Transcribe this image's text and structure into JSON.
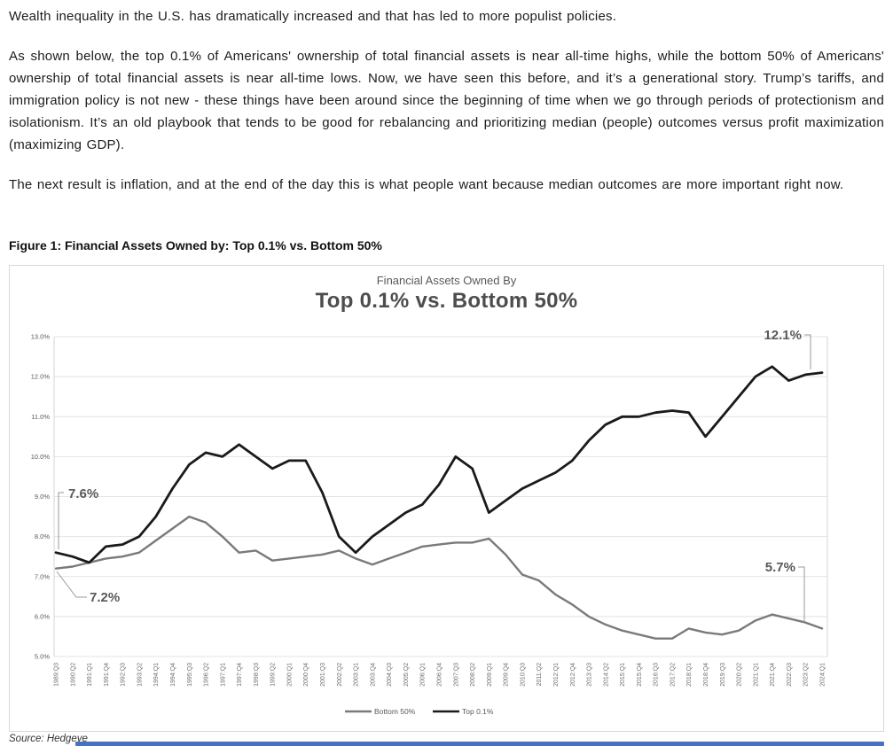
{
  "document": {
    "paragraphs": [
      "Wealth inequality in the U.S. has dramatically increased and that has led to more populist policies.",
      "As shown below, the top 0.1% of Americans' ownership of total financial assets is near all-time highs, while the bottom 50% of Americans' ownership of total financial assets is near all-time lows. Now, we have seen this before, and it’s a generational story. Trump’s tariffs, and immigration policy is not new - these things have been around since the beginning of time when we go through periods of protectionism and isolationism. It’s an old playbook that tends to be good for rebalancing and prioritizing median (people) outcomes versus profit maximization (maximizing GDP).",
      "The next result is inflation, and at the end of the day this is what people want because median outcomes are more important right now."
    ],
    "figure_caption": "Figure 1: Financial Assets Owned by: Top 0.1% vs. Bottom 50%",
    "source_note": "Source: Hedgeye"
  },
  "colors": {
    "top_01_line": "#1a1a1a",
    "bottom_50_line": "#7a7a7a",
    "gridline": "#e3e3e3",
    "plot_border": "#d6d6d6",
    "axis_label": "#595959",
    "annotation_text": "#595959",
    "annotation_leader": "#9a9a9a",
    "bottom_bar": "#4472c4"
  },
  "chart_data": {
    "type": "line",
    "title": "Financial Assets Owned By",
    "subtitle": "Top 0.1% vs. Bottom 50%",
    "ylim": [
      5.0,
      13.0
    ],
    "y_tick_step": 1.0,
    "y_tick_labels": [
      "13.0%",
      "12.0%",
      "11.0%",
      "10.0%",
      "9.0%",
      "8.0%",
      "7.0%",
      "6.0%",
      "5.0%"
    ],
    "grid": "horizontal",
    "legend_position": "bottom-center",
    "x_tick_labels": [
      "1989:Q3",
      "1990:Q2",
      "1991:Q1",
      "1991:Q4",
      "1992:Q3",
      "1993:Q2",
      "1994:Q1",
      "1994:Q4",
      "1995:Q3",
      "1996:Q2",
      "1997:Q1",
      "1997:Q4",
      "1998:Q3",
      "1999:Q2",
      "2000:Q1",
      "2000:Q4",
      "2001:Q3",
      "2002:Q2",
      "2003:Q1",
      "2003:Q4",
      "2004:Q3",
      "2005:Q2",
      "2006:Q1",
      "2006:Q4",
      "2007:Q3",
      "2008:Q2",
      "2009:Q1",
      "2009:Q4",
      "2010:Q3",
      "2011:Q2",
      "2012:Q1",
      "2012:Q4",
      "2013:Q3",
      "2014:Q2",
      "2015:Q1",
      "2015:Q4",
      "2016:Q3",
      "2017:Q2",
      "2018:Q1",
      "2018:Q4",
      "2019:Q3",
      "2020:Q2",
      "2021:Q1",
      "2021:Q4",
      "2022:Q3",
      "2023:Q2",
      "2024:Q1"
    ],
    "series": [
      {
        "name": "Bottom 50%",
        "color": "#7a7a7a",
        "values": [
          7.2,
          7.25,
          7.35,
          7.45,
          7.5,
          7.6,
          7.9,
          8.2,
          8.5,
          8.35,
          8.0,
          7.6,
          7.65,
          7.4,
          7.45,
          7.5,
          7.55,
          7.65,
          7.45,
          7.3,
          7.45,
          7.6,
          7.75,
          7.8,
          7.85,
          7.85,
          7.95,
          7.55,
          7.05,
          6.9,
          6.55,
          6.3,
          6.0,
          5.8,
          5.65,
          5.55,
          5.45,
          5.45,
          5.7,
          5.6,
          5.55,
          5.65,
          5.9,
          6.05,
          5.95,
          5.85,
          5.7
        ]
      },
      {
        "name": "Top 0.1%",
        "color": "#1a1a1a",
        "values": [
          7.6,
          7.5,
          7.35,
          7.75,
          7.8,
          8.0,
          8.5,
          9.2,
          9.8,
          10.1,
          10.0,
          10.3,
          10.0,
          9.7,
          9.9,
          9.9,
          9.1,
          8.0,
          7.6,
          8.0,
          8.3,
          8.6,
          8.8,
          9.3,
          10.0,
          9.7,
          8.6,
          8.9,
          9.2,
          9.4,
          9.6,
          9.9,
          10.4,
          10.8,
          11.0,
          11.0,
          11.1,
          11.15,
          11.1,
          10.5,
          11.0,
          11.5,
          12.0,
          12.25,
          11.9,
          12.05,
          12.1
        ]
      }
    ],
    "annotations": [
      {
        "label": "7.6%",
        "series": "Top 0.1%",
        "point": "1989:Q3",
        "value": 7.6
      },
      {
        "label": "7.2%",
        "series": "Bottom 50%",
        "point": "1989:Q3",
        "value": 7.2
      },
      {
        "label": "12.1%",
        "series": "Top 0.1%",
        "point": "2024:Q1",
        "value": 12.1
      },
      {
        "label": "5.7%",
        "series": "Bottom 50%",
        "point": "2024:Q1",
        "value": 5.7
      }
    ]
  }
}
